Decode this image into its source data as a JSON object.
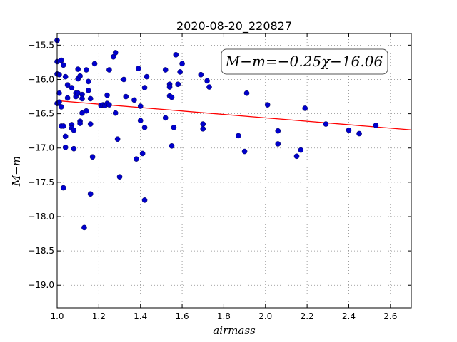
{
  "chart_data": {
    "type": "scatter",
    "title": "2020-08-20_220827",
    "xlabel": "airmass",
    "ylabel": "M−m",
    "xlim": [
      1.0,
      2.7
    ],
    "ylim": [
      -19.33,
      -15.33
    ],
    "y_inverted": true,
    "grid": true,
    "x_ticks": [
      1.0,
      1.2,
      1.4,
      1.6,
      1.8,
      2.0,
      2.2,
      2.4,
      2.6
    ],
    "x_tick_labels": [
      "1.0",
      "1.2",
      "1.4",
      "1.6",
      "1.8",
      "2.0",
      "2.2",
      "2.4",
      "2.6"
    ],
    "y_ticks": [
      -15.5,
      -16.0,
      -16.5,
      -17.0,
      -17.5,
      -18.0,
      -18.5,
      -19.0
    ],
    "y_tick_labels": [
      "−15.5",
      "−16.0",
      "−16.5",
      "−17.0",
      "−17.5",
      "−18.0",
      "−18.5",
      "−19.0"
    ],
    "annotation": "M−m=−0.25χ−16.06",
    "fit": {
      "slope": -0.25,
      "intercept": -16.06,
      "color": "#ff0000"
    },
    "point_color": "#0000cc",
    "points": [
      {
        "x": 1.0,
        "y": -15.43
      },
      {
        "x": 1.0,
        "y": -15.74
      },
      {
        "x": 1.0,
        "y": -15.92
      },
      {
        "x": 1.0,
        "y": -16.35
      },
      {
        "x": 1.01,
        "y": -15.93
      },
      {
        "x": 1.01,
        "y": -16.2
      },
      {
        "x": 1.01,
        "y": -16.33
      },
      {
        "x": 1.02,
        "y": -15.72
      },
      {
        "x": 1.02,
        "y": -16.4
      },
      {
        "x": 1.02,
        "y": -16.68
      },
      {
        "x": 1.03,
        "y": -15.79
      },
      {
        "x": 1.03,
        "y": -16.68
      },
      {
        "x": 1.03,
        "y": -17.58
      },
      {
        "x": 1.04,
        "y": -16.83
      },
      {
        "x": 1.04,
        "y": -16.99
      },
      {
        "x": 1.04,
        "y": -15.96
      },
      {
        "x": 1.05,
        "y": -16.08
      },
      {
        "x": 1.05,
        "y": -16.27
      },
      {
        "x": 1.07,
        "y": -16.12
      },
      {
        "x": 1.07,
        "y": -16.66
      },
      {
        "x": 1.07,
        "y": -16.71
      },
      {
        "x": 1.08,
        "y": -16.74
      },
      {
        "x": 1.08,
        "y": -17.01
      },
      {
        "x": 1.09,
        "y": -16.2
      },
      {
        "x": 1.09,
        "y": -16.25
      },
      {
        "x": 1.1,
        "y": -16.2
      },
      {
        "x": 1.1,
        "y": -15.85
      },
      {
        "x": 1.1,
        "y": -15.99
      },
      {
        "x": 1.11,
        "y": -16.61
      },
      {
        "x": 1.11,
        "y": -16.64
      },
      {
        "x": 1.11,
        "y": -15.95
      },
      {
        "x": 1.12,
        "y": -16.22
      },
      {
        "x": 1.12,
        "y": -16.28
      },
      {
        "x": 1.12,
        "y": -16.49
      },
      {
        "x": 1.13,
        "y": -18.16
      },
      {
        "x": 1.14,
        "y": -16.46
      },
      {
        "x": 1.14,
        "y": -15.86
      },
      {
        "x": 1.15,
        "y": -16.03
      },
      {
        "x": 1.15,
        "y": -16.16
      },
      {
        "x": 1.16,
        "y": -17.67
      },
      {
        "x": 1.16,
        "y": -16.28
      },
      {
        "x": 1.16,
        "y": -16.65
      },
      {
        "x": 1.17,
        "y": -17.13
      },
      {
        "x": 1.18,
        "y": -15.77
      },
      {
        "x": 1.21,
        "y": -16.38
      },
      {
        "x": 1.22,
        "y": -16.37
      },
      {
        "x": 1.23,
        "y": -16.38
      },
      {
        "x": 1.24,
        "y": -16.35
      },
      {
        "x": 1.24,
        "y": -16.23
      },
      {
        "x": 1.25,
        "y": -16.37
      },
      {
        "x": 1.25,
        "y": -15.86
      },
      {
        "x": 1.27,
        "y": -15.67
      },
      {
        "x": 1.28,
        "y": -16.49
      },
      {
        "x": 1.28,
        "y": -15.61
      },
      {
        "x": 1.29,
        "y": -16.87
      },
      {
        "x": 1.3,
        "y": -17.42
      },
      {
        "x": 1.32,
        "y": -16.0
      },
      {
        "x": 1.33,
        "y": -16.25
      },
      {
        "x": 1.37,
        "y": -16.3
      },
      {
        "x": 1.38,
        "y": -17.16
      },
      {
        "x": 1.39,
        "y": -15.84
      },
      {
        "x": 1.4,
        "y": -16.39
      },
      {
        "x": 1.4,
        "y": -16.6
      },
      {
        "x": 1.41,
        "y": -17.08
      },
      {
        "x": 1.42,
        "y": -16.7
      },
      {
        "x": 1.42,
        "y": -16.12
      },
      {
        "x": 1.43,
        "y": -15.96
      },
      {
        "x": 1.42,
        "y": -17.76
      },
      {
        "x": 1.52,
        "y": -15.86
      },
      {
        "x": 1.52,
        "y": -16.56
      },
      {
        "x": 1.54,
        "y": -16.07
      },
      {
        "x": 1.54,
        "y": -16.11
      },
      {
        "x": 1.54,
        "y": -16.24
      },
      {
        "x": 1.55,
        "y": -16.26
      },
      {
        "x": 1.55,
        "y": -16.97
      },
      {
        "x": 1.56,
        "y": -16.7
      },
      {
        "x": 1.57,
        "y": -15.64
      },
      {
        "x": 1.58,
        "y": -16.07
      },
      {
        "x": 1.59,
        "y": -15.89
      },
      {
        "x": 1.6,
        "y": -15.77
      },
      {
        "x": 1.69,
        "y": -15.93
      },
      {
        "x": 1.7,
        "y": -16.65
      },
      {
        "x": 1.7,
        "y": -16.72
      },
      {
        "x": 1.72,
        "y": -16.02
      },
      {
        "x": 1.73,
        "y": -16.11
      },
      {
        "x": 1.87,
        "y": -16.82
      },
      {
        "x": 1.9,
        "y": -17.05
      },
      {
        "x": 1.91,
        "y": -16.2
      },
      {
        "x": 2.01,
        "y": -16.37
      },
      {
        "x": 2.06,
        "y": -16.75
      },
      {
        "x": 2.06,
        "y": -16.94
      },
      {
        "x": 2.15,
        "y": -17.12
      },
      {
        "x": 2.17,
        "y": -17.03
      },
      {
        "x": 2.19,
        "y": -16.42
      },
      {
        "x": 2.29,
        "y": -16.65
      },
      {
        "x": 2.4,
        "y": -16.74
      },
      {
        "x": 2.45,
        "y": -16.79
      },
      {
        "x": 2.53,
        "y": -16.67
      }
    ]
  }
}
